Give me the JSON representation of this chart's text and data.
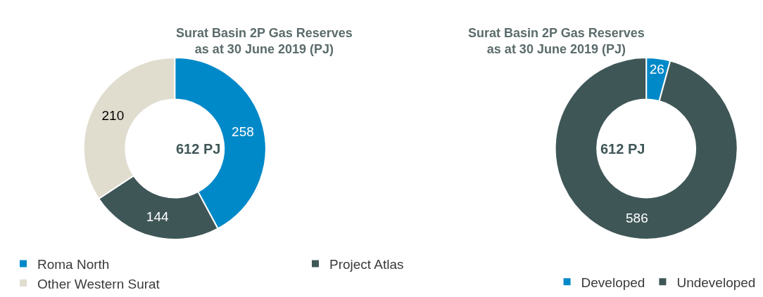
{
  "chart_data": [
    {
      "type": "donut",
      "title": "Surat Basin 2P Gas Reserves\nas at 30 June 2019 (PJ)",
      "categories": [
        "Roma North",
        "Project Atlas",
        "Other Western Surat"
      ],
      "values": [
        258,
        144,
        210
      ],
      "colors": [
        "#0089c8",
        "#3f5657",
        "#e0ddcf"
      ],
      "data_labels": true,
      "annotations": [
        "612 PJ"
      ],
      "legend": "bottom"
    },
    {
      "type": "donut",
      "title": "Surat Basin 2P Gas Reserves\nas at 30 June 2019 (PJ)",
      "categories": [
        "Developed",
        "Undeveloped"
      ],
      "values": [
        26,
        586
      ],
      "colors": [
        "#0089c8",
        "#3f5657"
      ],
      "data_labels": true,
      "annotations": [
        "612 PJ"
      ],
      "legend": "bottom right"
    }
  ]
}
